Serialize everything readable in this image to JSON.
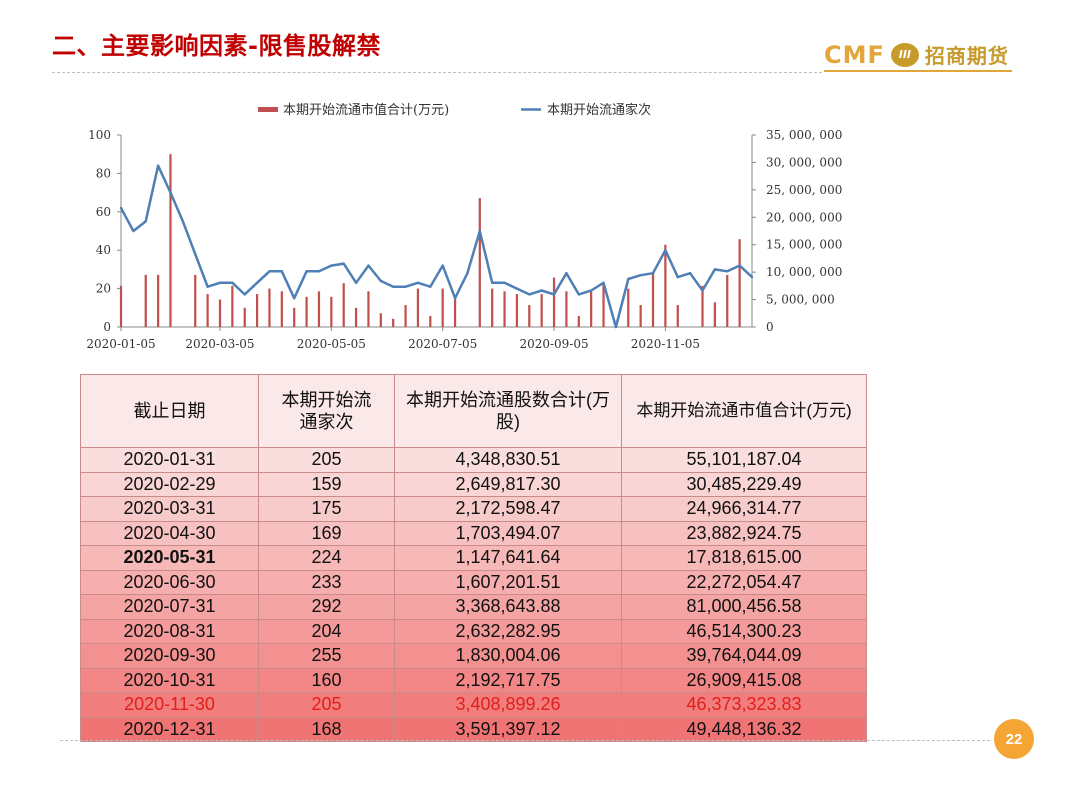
{
  "slide": {
    "title": "二、主要影响因素-限售股解禁",
    "page_number": "22"
  },
  "logo": {
    "brand": "CMF",
    "mark": "III",
    "name": "招商期货"
  },
  "colors": {
    "title": "#c00000",
    "bar": "#c0504d",
    "line": "#4f7fb5",
    "logo": "#e2a63a",
    "table_bg_top": "#fbe8e8",
    "table_bg_bottom": "#f06a6a",
    "highlight_text": "#e0201c"
  },
  "chart_data": {
    "type": "bar+line",
    "legend": {
      "placement": "top",
      "bar": "本期开始流通市值合计(万元)",
      "line": "本期开始流通家次"
    },
    "left_axis": {
      "ylim": [
        0,
        100
      ],
      "ticks": [
        "100",
        "80",
        "60",
        "40",
        "20",
        "0"
      ]
    },
    "right_axis": {
      "ylim": [
        0,
        35000000
      ],
      "ticks": [
        "35, 000, 000",
        "30, 000, 000",
        "25, 000, 000",
        "20, 000, 000",
        "15, 000, 000",
        "10, 000, 000",
        "5, 000, 000",
        "0"
      ]
    },
    "x_tick_labels": [
      "2020-01-05",
      "2020-03-05",
      "2020-05-05",
      "2020-07-05",
      "2020-09-05",
      "2020-11-05"
    ],
    "x_tick_index": [
      0,
      8,
      17,
      26,
      35,
      44
    ],
    "line_series": {
      "name": "本期开始流通家次",
      "axis": "left",
      "values": [
        62,
        50,
        55,
        84,
        70,
        55,
        38,
        21,
        23,
        23,
        17,
        23,
        29,
        29,
        15,
        29,
        29,
        32,
        33,
        23,
        32,
        24,
        21,
        21,
        23,
        21,
        32,
        15,
        28,
        50,
        23,
        23,
        20,
        17,
        19,
        17,
        28,
        17,
        19,
        23,
        0,
        25,
        27,
        28,
        40,
        26,
        28,
        19,
        30,
        29,
        32,
        26
      ]
    },
    "bar_series": {
      "name": "本期开始流通市值合计(万元)",
      "axis": "right",
      "values": [
        7500000,
        0,
        9500000,
        9500000,
        31500000,
        0,
        9500000,
        6000000,
        5000000,
        7500000,
        3500000,
        6000000,
        7000000,
        6500000,
        3500000,
        5500000,
        6500000,
        5500000,
        8000000,
        3500000,
        6500000,
        2500000,
        1500000,
        4000000,
        7000000,
        2000000,
        7000000,
        5500000,
        0,
        23500000,
        7000000,
        6500000,
        6000000,
        4000000,
        6000000,
        9000000,
        6500000,
        2000000,
        6500000,
        8000000,
        0,
        7000000,
        4000000,
        10000000,
        15000000,
        4000000,
        0,
        7500000,
        4500000,
        9500000,
        16000000,
        0
      ]
    }
  },
  "table": {
    "headers": [
      "截止日期",
      "本期开始流通家次",
      "本期开始流通股数合计(万股)",
      "本期开始流通市值合计(万元)"
    ],
    "rows": [
      [
        "2020-01-31",
        "205",
        "4,348,830.51",
        "55,101,187.04"
      ],
      [
        "2020-02-29",
        "159",
        "2,649,817.30",
        "30,485,229.49"
      ],
      [
        "2020-03-31",
        "175",
        "2,172,598.47",
        "24,966,314.77"
      ],
      [
        "2020-04-30",
        "169",
        "1,703,494.07",
        "23,882,924.75"
      ],
      [
        "2020-05-31",
        "224",
        "1,147,641.64",
        "17,818,615.00"
      ],
      [
        "2020-06-30",
        "233",
        "1,607,201.51",
        "22,272,054.47"
      ],
      [
        "2020-07-31",
        "292",
        "3,368,643.88",
        "81,000,456.58"
      ],
      [
        "2020-08-31",
        "204",
        "2,632,282.95",
        "46,514,300.23"
      ],
      [
        "2020-09-30",
        "255",
        "1,830,004.06",
        "39,764,044.09"
      ],
      [
        "2020-10-31",
        "160",
        "2,192,717.75",
        "26,909,415.08"
      ],
      [
        "2020-11-30",
        "205",
        "3,408,899.26",
        "46,373,323.83"
      ],
      [
        "2020-12-31",
        "168",
        "3,591,397.12",
        "49,448,136.32"
      ]
    ],
    "bold_row_index": 4,
    "highlight_row_index": 10
  }
}
